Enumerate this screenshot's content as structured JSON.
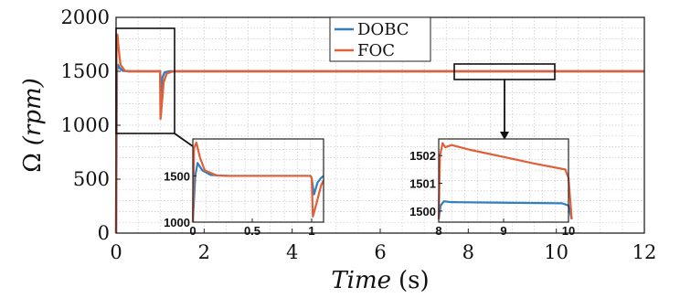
{
  "chart_data": {
    "type": "line",
    "xlabel": "Time (s)",
    "xlabel_parts": {
      "var": "Time",
      "unit": "(s)"
    },
    "ylabel": "Ω (rpm)",
    "ylabel_parts": {
      "sym": "Ω",
      "unit": "(rpm)"
    },
    "xlim": [
      0,
      12
    ],
    "ylim": [
      0,
      2000
    ],
    "x_ticks": [
      "0",
      "2",
      "4",
      "6",
      "8",
      "10",
      "12"
    ],
    "y_ticks": [
      "0",
      "500",
      "1000",
      "1500",
      "2000"
    ],
    "grid": true,
    "legend_position": "top-center",
    "series": [
      {
        "name": "DOBC",
        "color": "#2f7fc1",
        "x": [
          0,
          0.02,
          0.04,
          0.08,
          0.15,
          0.3,
          1.0,
          1.02,
          1.05,
          1.1,
          1.2,
          1.4,
          12
        ],
        "y": [
          0,
          1500,
          1560,
          1530,
          1505,
          1500,
          1500,
          1300,
          1440,
          1490,
          1500,
          1500,
          1500
        ]
      },
      {
        "name": "FOC",
        "color": "#e0603a",
        "x": [
          0,
          0.01,
          0.03,
          0.06,
          0.1,
          0.2,
          0.3,
          1.0,
          1.01,
          1.04,
          1.08,
          1.15,
          1.3,
          12
        ],
        "y": [
          0,
          1800,
          1840,
          1700,
          1560,
          1505,
          1500,
          1500,
          1060,
          1200,
          1400,
          1480,
          1500,
          1500
        ]
      }
    ],
    "zoom_boxes": [
      {
        "xlim": [
          0,
          1.35
        ],
        "ylim": [
          1000,
          1900
        ]
      },
      {
        "xlim": [
          7.8,
          10.2
        ],
        "ylim": [
          1499.6,
          1502.6
        ]
      }
    ],
    "insets": [
      {
        "xlim": [
          0,
          1.1
        ],
        "ylim": [
          1000,
          1900
        ],
        "x_ticks": [
          "0",
          "0.5",
          "1"
        ],
        "y_ticks": [
          "1000",
          "1500"
        ],
        "x_tick_values": [
          0,
          0.5,
          1
        ],
        "y_tick_values": [
          1000,
          1500
        ],
        "series": [
          {
            "name": "DOBC",
            "x": [
              0,
              0.02,
              0.04,
              0.08,
              0.15,
              0.3,
              0.99,
              1.0,
              1.02,
              1.05,
              1.08,
              1.1
            ],
            "y": [
              1000,
              1500,
              1640,
              1560,
              1510,
              1500,
              1500,
              1480,
              1300,
              1430,
              1480,
              1500
            ]
          },
          {
            "name": "FOC",
            "x": [
              0,
              0.01,
              0.03,
              0.06,
              0.1,
              0.2,
              0.3,
              0.99,
              1.0,
              1.01,
              1.04,
              1.08,
              1.1
            ],
            "y": [
              1000,
              1800,
              1860,
              1700,
              1560,
              1505,
              1500,
              1500,
              1480,
              1060,
              1200,
              1400,
              1450
            ]
          }
        ]
      },
      {
        "xlim": [
          8,
          10
        ],
        "ylim": [
          1499.6,
          1502.6
        ],
        "x_ticks": [
          "8",
          "9",
          "10"
        ],
        "y_ticks": [
          "1500",
          "1501",
          "1502"
        ],
        "x_tick_values": [
          8,
          9,
          10
        ],
        "y_tick_values": [
          1500,
          1501,
          1502
        ],
        "series": [
          {
            "name": "DOBC",
            "x": [
              8,
              8.03,
              8.08,
              8.2,
              9,
              9.9,
              10,
              10.05
            ],
            "y": [
              1499.7,
              1500.2,
              1500.35,
              1500.32,
              1500.3,
              1500.28,
              1500.2,
              1499.7
            ]
          },
          {
            "name": "FOC",
            "x": [
              8,
              8.02,
              8.06,
              8.1,
              8.2,
              8.5,
              9,
              9.5,
              9.95,
              10,
              10.05
            ],
            "y": [
              1499.7,
              1502.0,
              1502.45,
              1502.3,
              1502.38,
              1502.2,
              1501.95,
              1501.7,
              1501.5,
              1501.2,
              1499.7
            ]
          }
        ]
      }
    ]
  }
}
